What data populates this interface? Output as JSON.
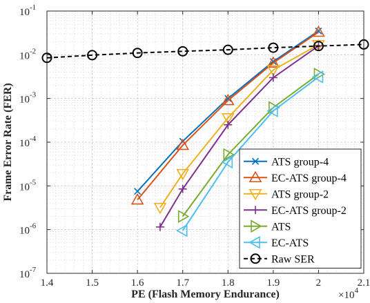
{
  "chart_data": {
    "type": "line",
    "xlabel": "PE (Flash Memory Endurance)",
    "ylabel": "Frame Error Rate (FER)",
    "x_multiplier_label": "×10",
    "x_multiplier_exp": "4",
    "xlim": [
      1.4,
      2.1
    ],
    "ylim": [
      1e-07,
      0.1
    ],
    "yscale": "log",
    "grid": true,
    "legend_position": "bottom-right",
    "x_ticks": [
      "1.4",
      "1.5",
      "1.6",
      "1.7",
      "1.8",
      "1.9",
      "2",
      "2.1"
    ],
    "y_ticks": [
      {
        "base": "10",
        "exp": "-7",
        "value": 1e-07
      },
      {
        "base": "10",
        "exp": "-6",
        "value": 1e-06
      },
      {
        "base": "10",
        "exp": "-5",
        "value": 1e-05
      },
      {
        "base": "10",
        "exp": "-4",
        "value": 0.0001
      },
      {
        "base": "10",
        "exp": "-3",
        "value": 0.001
      },
      {
        "base": "10",
        "exp": "-2",
        "value": 0.01
      },
      {
        "base": "10",
        "exp": "-1",
        "value": 0.1
      }
    ],
    "series": [
      {
        "name": "ATS group-4",
        "color": "#0072BD",
        "marker": "x",
        "dash": false,
        "x": [
          1.6,
          1.7,
          1.8,
          1.9,
          2.0
        ],
        "y": [
          7.5e-06,
          0.000105,
          0.001,
          0.007,
          0.035
        ]
      },
      {
        "name": "EC-ATS group-4",
        "color": "#D95319",
        "marker": "triangle-up",
        "dash": false,
        "x": [
          1.6,
          1.7,
          1.8,
          1.9,
          2.0
        ],
        "y": [
          4.8e-06,
          8.5e-05,
          0.0009,
          0.0065,
          0.033
        ]
      },
      {
        "name": "ATS group-2",
        "color": "#EDB120",
        "marker": "triangle-down",
        "dash": false,
        "x": [
          1.65,
          1.7,
          1.8,
          1.9,
          2.0
        ],
        "y": [
          3.2e-06,
          1.9e-05,
          0.00036,
          0.0045,
          0.017
        ]
      },
      {
        "name": "EC-ATS group-2",
        "color": "#7E2F8E",
        "marker": "plus",
        "dash": false,
        "x": [
          1.65,
          1.7,
          1.8,
          1.9,
          2.0
        ],
        "y": [
          1.15e-06,
          8.5e-06,
          0.00025,
          0.003,
          0.016
        ]
      },
      {
        "name": "ATS",
        "color": "#77AC30",
        "marker": "triangle-right",
        "dash": false,
        "x": [
          1.7,
          1.8,
          1.9,
          2.0
        ],
        "y": [
          2e-06,
          5.2e-05,
          0.00062,
          0.0036
        ]
      },
      {
        "name": "EC-ATS",
        "color": "#4DBEEE",
        "marker": "triangle-left",
        "dash": false,
        "x": [
          1.7,
          1.8,
          1.9,
          2.0
        ],
        "y": [
          9.5e-07,
          3.5e-05,
          0.00052,
          0.0031
        ]
      },
      {
        "name": "Raw SER",
        "color": "#000000",
        "marker": "circle",
        "dash": true,
        "x": [
          1.4,
          1.5,
          1.6,
          1.7,
          1.8,
          1.9,
          2.0,
          2.1
        ],
        "y": [
          0.0085,
          0.0098,
          0.011,
          0.012,
          0.013,
          0.0145,
          0.0158,
          0.0172
        ]
      }
    ]
  }
}
